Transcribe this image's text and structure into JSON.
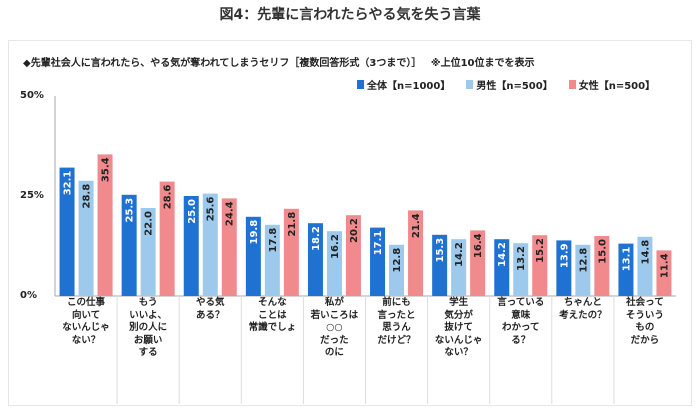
{
  "figure_title": "図4：先輩に言われたらやる気を失う言葉",
  "subtitle": "◆先輩社会人に言われたら、やる気が奪われてしまうセリフ［複数回答形式（3つまで）］",
  "note": "※上位10位までを表示",
  "colors": {
    "all": "#1f72d2",
    "male": "#9cc9ec",
    "female": "#f08a8d",
    "axis": "#aaaaaa"
  },
  "chart_data": {
    "type": "bar",
    "ylim": [
      0,
      50
    ],
    "yticks": [
      {
        "value": 0,
        "label": "0%"
      },
      {
        "value": 25,
        "label": "25%"
      },
      {
        "value": 50,
        "label": "50%"
      }
    ],
    "categories": [
      "この仕事\n向いて\nないんじゃ\nない？",
      "もう\nいいよ、\n別の人に\nお願い\nする",
      "やる気\nある？",
      "そんな\nことは\n常識でしょ",
      "私が\n若いころは\n○○\nだった\nのに",
      "前にも\n言ったと\n思うん\nだけど？",
      "学生\n気分が\n抜けて\nないんじゃ\nない？",
      "言っている\n意味\nわかって\nる？",
      "ちゃんと\n考えたの？",
      "社会って\nそういう\nもの\nだから"
    ],
    "series": [
      {
        "name": "全体【n=1000】",
        "values": [
          32.1,
          25.3,
          25.0,
          19.8,
          18.2,
          17.1,
          15.3,
          14.2,
          13.9,
          13.1
        ]
      },
      {
        "name": "男性【n=500】",
        "values": [
          28.8,
          22.0,
          25.6,
          17.8,
          16.2,
          12.8,
          14.2,
          13.2,
          12.8,
          14.8
        ]
      },
      {
        "name": "女性【n=500】",
        "values": [
          35.4,
          28.6,
          24.4,
          21.8,
          20.2,
          21.4,
          16.4,
          15.2,
          15.0,
          11.4
        ]
      }
    ],
    "legend_position": "top-right",
    "grid": false
  }
}
